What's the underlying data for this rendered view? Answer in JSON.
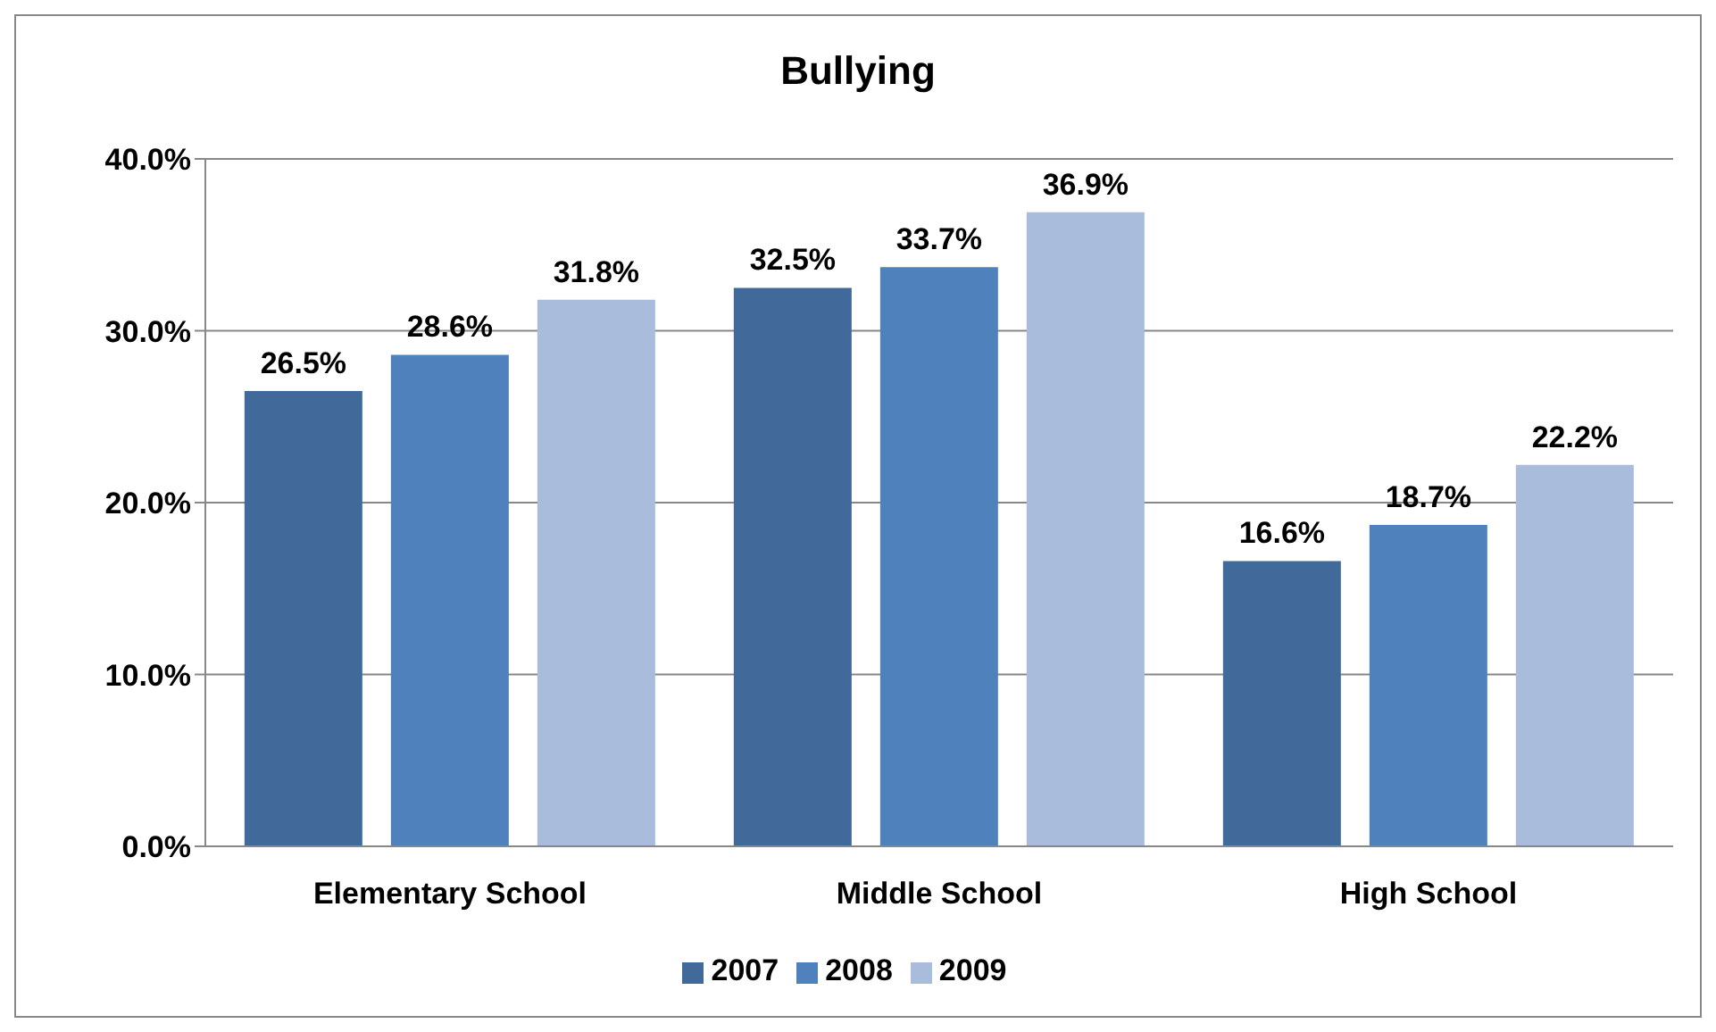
{
  "chart_data": {
    "type": "bar",
    "title": "Bullying",
    "categories": [
      "Elementary School",
      "Middle School",
      "High School"
    ],
    "series": [
      {
        "name": "2007",
        "color": "#41699a",
        "values": [
          26.5,
          32.5,
          16.6
        ],
        "value_labels": [
          "26.5%",
          "32.5%",
          "16.6%"
        ]
      },
      {
        "name": "2008",
        "color": "#4f81bd",
        "values": [
          28.6,
          33.7,
          18.7
        ],
        "value_labels": [
          "28.6%",
          "33.7%",
          "18.7%"
        ]
      },
      {
        "name": "2009",
        "color": "#a9bcdb",
        "values": [
          31.8,
          36.9,
          22.2
        ],
        "value_labels": [
          "31.8%",
          "36.9%",
          "22.2%"
        ]
      }
    ],
    "ylim": [
      0,
      40
    ],
    "yticks": [
      {
        "value": 0,
        "label": "0.0%"
      },
      {
        "value": 10,
        "label": "10.0%"
      },
      {
        "value": 20,
        "label": "20.0%"
      },
      {
        "value": 30,
        "label": "30.0%"
      },
      {
        "value": 40,
        "label": "40.0%"
      }
    ],
    "grid": "y",
    "legend": "bottom"
  }
}
